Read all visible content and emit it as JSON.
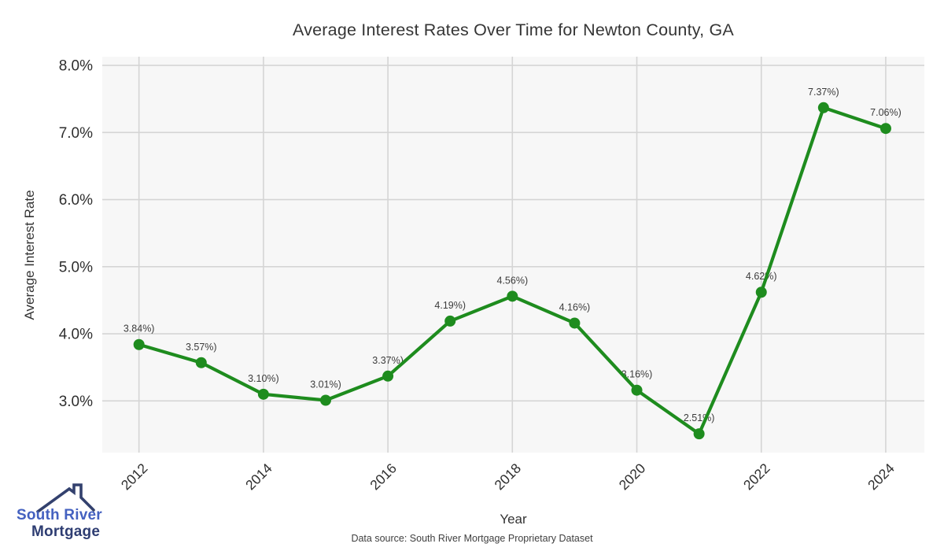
{
  "title": "Average Interest Rates Over Time for Newton County, GA",
  "footer": {
    "data_source": "Data source: South River Mortgage Proprietary Dataset"
  },
  "logo": {
    "line1": "South River",
    "line2": "Mortgage",
    "roof_icon": "house-roof-with-chimney",
    "text_color_primary": "#4461c0",
    "text_color_secondary": "#2e3d72"
  },
  "chart_data": {
    "type": "line",
    "title": "Average Interest Rates Over Time for Newton County, GA",
    "xlabel": "Year",
    "ylabel": "Average Interest Rate",
    "x": [
      2012,
      2013,
      2014,
      2015,
      2016,
      2017,
      2018,
      2019,
      2020,
      2021,
      2022,
      2023,
      2024
    ],
    "series": [
      {
        "name": "Average Interest Rate",
        "color": "#1e8c1e",
        "values": [
          3.84,
          3.57,
          3.1,
          3.01,
          3.37,
          4.19,
          4.56,
          4.16,
          3.16,
          2.51,
          4.62,
          7.37,
          7.06
        ]
      }
    ],
    "point_labels": [
      "3.84%)",
      "3.57%)",
      "3.10%)",
      "3.01%)",
      "3.37%)",
      "4.19%)",
      "4.56%)",
      "4.16%)",
      "3.16%)",
      "2.51%)",
      "4.62%)",
      "7.37%)",
      "7.06%)"
    ],
    "x_ticks": [
      2012,
      2014,
      2016,
      2018,
      2020,
      2022,
      2024
    ],
    "y_tick_values": [
      3,
      4,
      5,
      6,
      7,
      8
    ],
    "y_tick_labels": [
      "3.0%",
      "4.0%",
      "5.0%",
      "6.0%",
      "7.0%",
      "8.0%"
    ],
    "xlim": [
      2011.41,
      2024.62
    ],
    "ylim": [
      2.23,
      8.13
    ],
    "grid": true,
    "legend": "none",
    "colors": {
      "plot_bg": "#f7f7f7",
      "grid": "#d5d5d5",
      "tick_text": "#2e2e2e",
      "point_label_text": "#3c3c3c"
    }
  }
}
